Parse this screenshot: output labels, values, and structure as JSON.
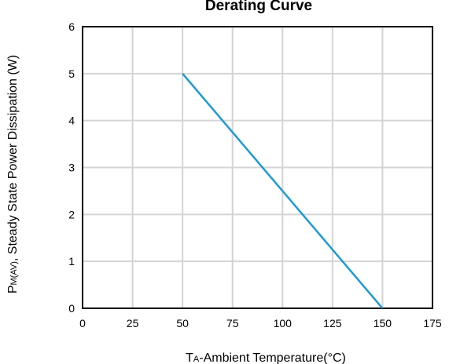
{
  "chart_data": {
    "type": "line",
    "title": "Derating Curve",
    "xlabel": {
      "prefix": "T",
      "subscript": "A",
      "suffix": "-Ambient Temperature(°C)"
    },
    "ylabel": {
      "prefix": "P",
      "subscript": "M(AV)",
      "suffix": ", Steady State Power Dissipation (W)"
    },
    "xlim": [
      0,
      175
    ],
    "ylim": [
      0,
      6
    ],
    "xticks": [
      0,
      25,
      50,
      75,
      100,
      125,
      150,
      175
    ],
    "xtick_labels": [
      "0",
      "25",
      "50",
      "75",
      "100",
      "125",
      "150",
      "175"
    ],
    "yticks": [
      0,
      1,
      2,
      3,
      4,
      5,
      6
    ],
    "ytick_labels": [
      "0",
      "1",
      "2",
      "3",
      "4",
      "5",
      "6"
    ],
    "grid": true,
    "series": [
      {
        "x": [
          50,
          150
        ],
        "y": [
          5,
          0
        ],
        "color": "#1e9ad6"
      }
    ]
  }
}
